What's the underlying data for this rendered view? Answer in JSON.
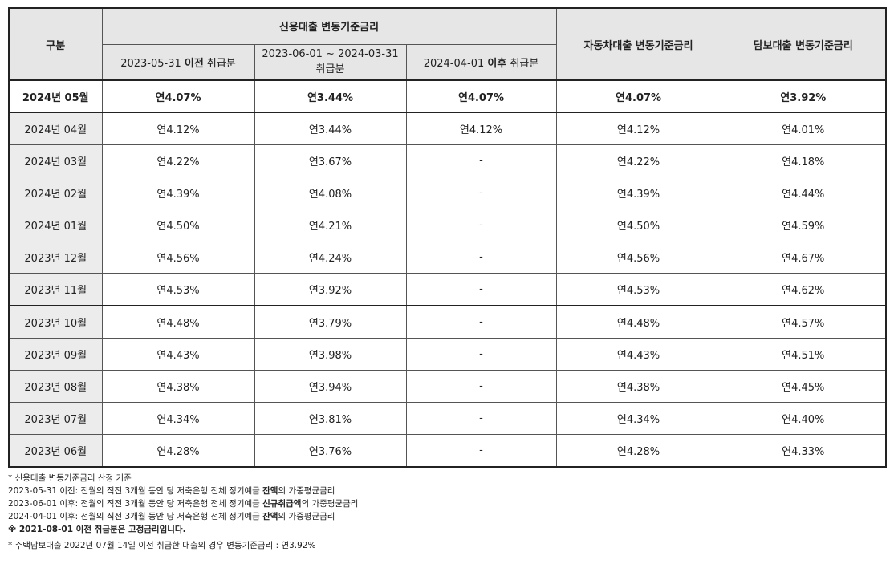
{
  "header": {
    "gubun": "구분",
    "credit_group": "신용대출 변동기준금리",
    "credit_sub1_pre": "2023-05-31 ",
    "credit_sub1_em": "이전",
    "credit_sub1_post": " 취급분",
    "credit_sub2_line1": "2023-06-01 ~ 2024-03-31",
    "credit_sub2_line2": "취급분",
    "credit_sub3_pre": "2024-04-01 ",
    "credit_sub3_em": "이후",
    "credit_sub3_post": " 취급분",
    "auto": "자동차대출 변동기준금리",
    "mortgage": "담보대출 변동기준금리"
  },
  "current_row": {
    "month": "2024년 05월",
    "c1": "연4.07%",
    "c2": "연3.44%",
    "c3": "연4.07%",
    "auto": "연4.07%",
    "mortgage": "연3.92%"
  },
  "rows": [
    {
      "month": "2024년 04월",
      "c1": "연4.12%",
      "c2": "연3.44%",
      "c3": "연4.12%",
      "auto": "연4.12%",
      "mortgage": "연4.01%"
    },
    {
      "month": "2024년 03월",
      "c1": "연4.22%",
      "c2": "연3.67%",
      "c3": "-",
      "auto": "연4.22%",
      "mortgage": "연4.18%"
    },
    {
      "month": "2024년 02월",
      "c1": "연4.39%",
      "c2": "연4.08%",
      "c3": "-",
      "auto": "연4.39%",
      "mortgage": "연4.44%"
    },
    {
      "month": "2024년 01월",
      "c1": "연4.50%",
      "c2": "연4.21%",
      "c3": "-",
      "auto": "연4.50%",
      "mortgage": "연4.59%"
    },
    {
      "month": "2023년 12월",
      "c1": "연4.56%",
      "c2": "연4.24%",
      "c3": "-",
      "auto": "연4.56%",
      "mortgage": "연4.67%"
    },
    {
      "month": "2023년 11월",
      "c1": "연4.53%",
      "c2": "연3.92%",
      "c3": "-",
      "auto": "연4.53%",
      "mortgage": "연4.62%"
    },
    {
      "month": "2023년 10월",
      "c1": "연4.48%",
      "c2": "연3.79%",
      "c3": "-",
      "auto": "연4.48%",
      "mortgage": "연4.57%"
    },
    {
      "month": "2023년 09월",
      "c1": "연4.43%",
      "c2": "연3.98%",
      "c3": "-",
      "auto": "연4.43%",
      "mortgage": "연4.51%"
    },
    {
      "month": "2023년 08월",
      "c1": "연4.38%",
      "c2": "연3.94%",
      "c3": "-",
      "auto": "연4.38%",
      "mortgage": "연4.45%"
    },
    {
      "month": "2023년 07월",
      "c1": "연4.34%",
      "c2": "연3.81%",
      "c3": "-",
      "auto": "연4.34%",
      "mortgage": "연4.40%"
    },
    {
      "month": "2023년 06월",
      "c1": "연4.28%",
      "c2": "연3.76%",
      "c3": "-",
      "auto": "연4.28%",
      "mortgage": "연4.33%"
    }
  ],
  "notes": {
    "title": "* 신용대출 변동기준금리 산정 기준",
    "n1_pre": "2023-05-31 이전: 전월의 직전 3개월 동안 당 저축은행 전체 정기예금 ",
    "n1_em": "잔액",
    "n1_post": "의 가중평균금리",
    "n2_pre": "2023-06-01 이후: 전월의 직전 3개월 동안 당 저축은행 전체 정기예금 ",
    "n2_em": "신규취급액",
    "n2_post": "의 가중평균금리",
    "n3_pre": "2024-04-01 이후: 전월의 직전 3개월 동안 당 저축은행 전체 정기예금 ",
    "n3_em": "잔액",
    "n3_post": "의 가중평균금리",
    "fixed": "※ 2021-08-01 이전 취급분은 고정금리입니다.",
    "mortgage_note": "* 주택담보대출 2022년 07월 14일 이전 취급한 대출의 경우 변동기준금리 : 연3.92%"
  }
}
